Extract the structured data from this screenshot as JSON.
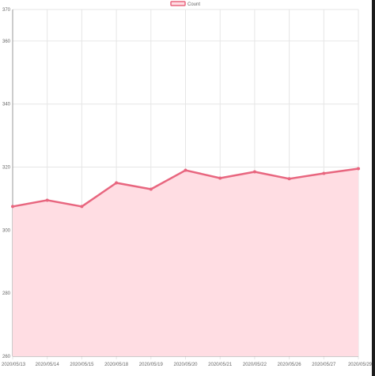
{
  "chart_data": {
    "type": "line",
    "x": [
      "2020/05/13",
      "2020/05/14",
      "2020/05/15",
      "2020/05/18",
      "2020/05/19",
      "2020/05/20",
      "2020/05/21",
      "2020/05/22",
      "2020/05/26",
      "2020/05/27",
      "2020/05/29"
    ],
    "series": [
      {
        "name": "Count",
        "values": [
          307.5,
          309.5,
          307.5,
          315,
          313,
          319,
          316.5,
          318.5,
          316.3,
          318,
          319.5
        ]
      }
    ],
    "yticks": [
      "370",
      "360",
      "340",
      "320",
      "300",
      "280",
      "260"
    ],
    "ylim": [
      260,
      370
    ],
    "grid": true,
    "fill": true,
    "legend": "top-center",
    "colors": {
      "line": "#e8667f",
      "fill": "#ffdde3",
      "grid": "#e6e6e6"
    }
  }
}
